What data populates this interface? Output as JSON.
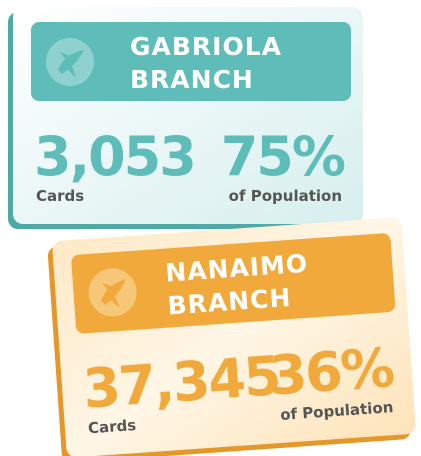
{
  "cards": [
    {
      "name_line1": "GABRIOLA",
      "name_line2": "BRANCH",
      "cards": "3,053",
      "cards_label": "Cards",
      "percent": "75%",
      "percent_label": "of Population"
    },
    {
      "name_line1": "NANAIMO",
      "name_line2": "BRANCH",
      "cards": "37,345",
      "cards_label": "Cards",
      "percent": "36%",
      "percent_label": "of Population"
    }
  ]
}
